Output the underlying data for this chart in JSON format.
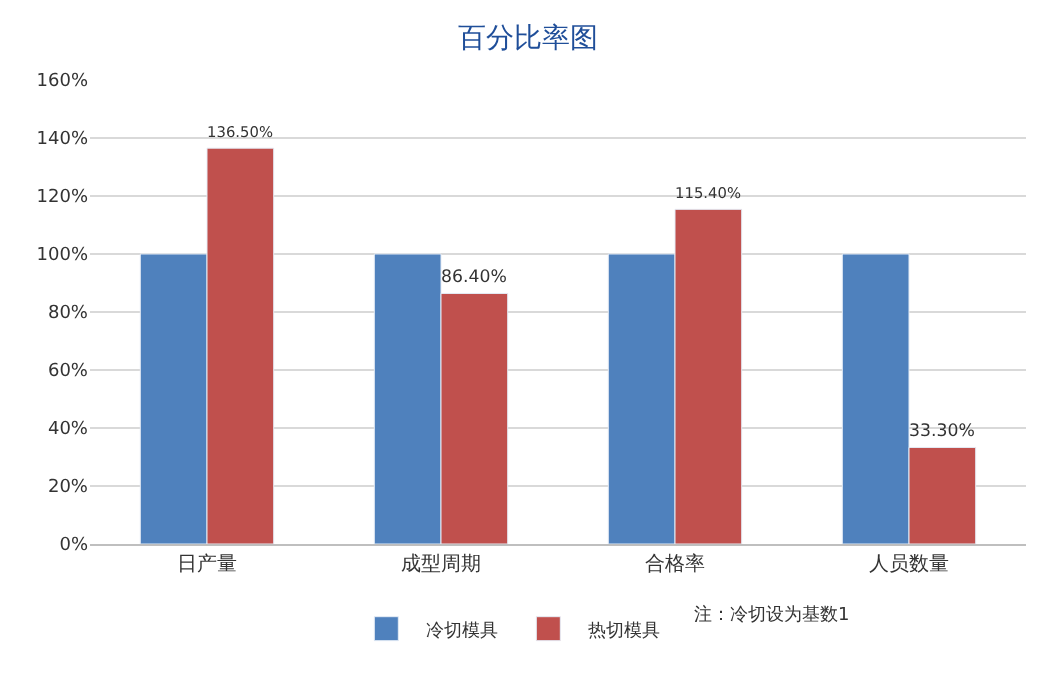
{
  "chart_data": {
    "type": "bar",
    "title": "百分比率图",
    "categories": [
      "日产量",
      "成型周期",
      "合格率",
      "人员数量"
    ],
    "series": [
      {
        "name": "冷切模具",
        "color": "#4f81bd",
        "values": [
          100,
          100,
          100,
          100
        ]
      },
      {
        "name": "热切模具",
        "color": "#c0504d",
        "values": [
          136.5,
          86.4,
          115.4,
          33.3
        ],
        "value_labels": [
          "136.50%",
          "86.40%",
          "115.40%",
          "33.30%"
        ]
      }
    ],
    "ylim": [
      0,
      160
    ],
    "yticks": [
      {
        "value": 0,
        "label": "0%"
      },
      {
        "value": 20,
        "label": "20%"
      },
      {
        "value": 40,
        "label": "40%"
      },
      {
        "value": 60,
        "label": "60%"
      },
      {
        "value": 80,
        "label": "80%"
      },
      {
        "value": 100,
        "label": "100%"
      },
      {
        "value": 120,
        "label": "120%"
      },
      {
        "value": 140,
        "label": "140%"
      },
      {
        "value": 160,
        "label": "160%"
      }
    ],
    "grid": "y",
    "legend": "bottom",
    "annotations": [
      "注：冷切设为基数1"
    ]
  }
}
